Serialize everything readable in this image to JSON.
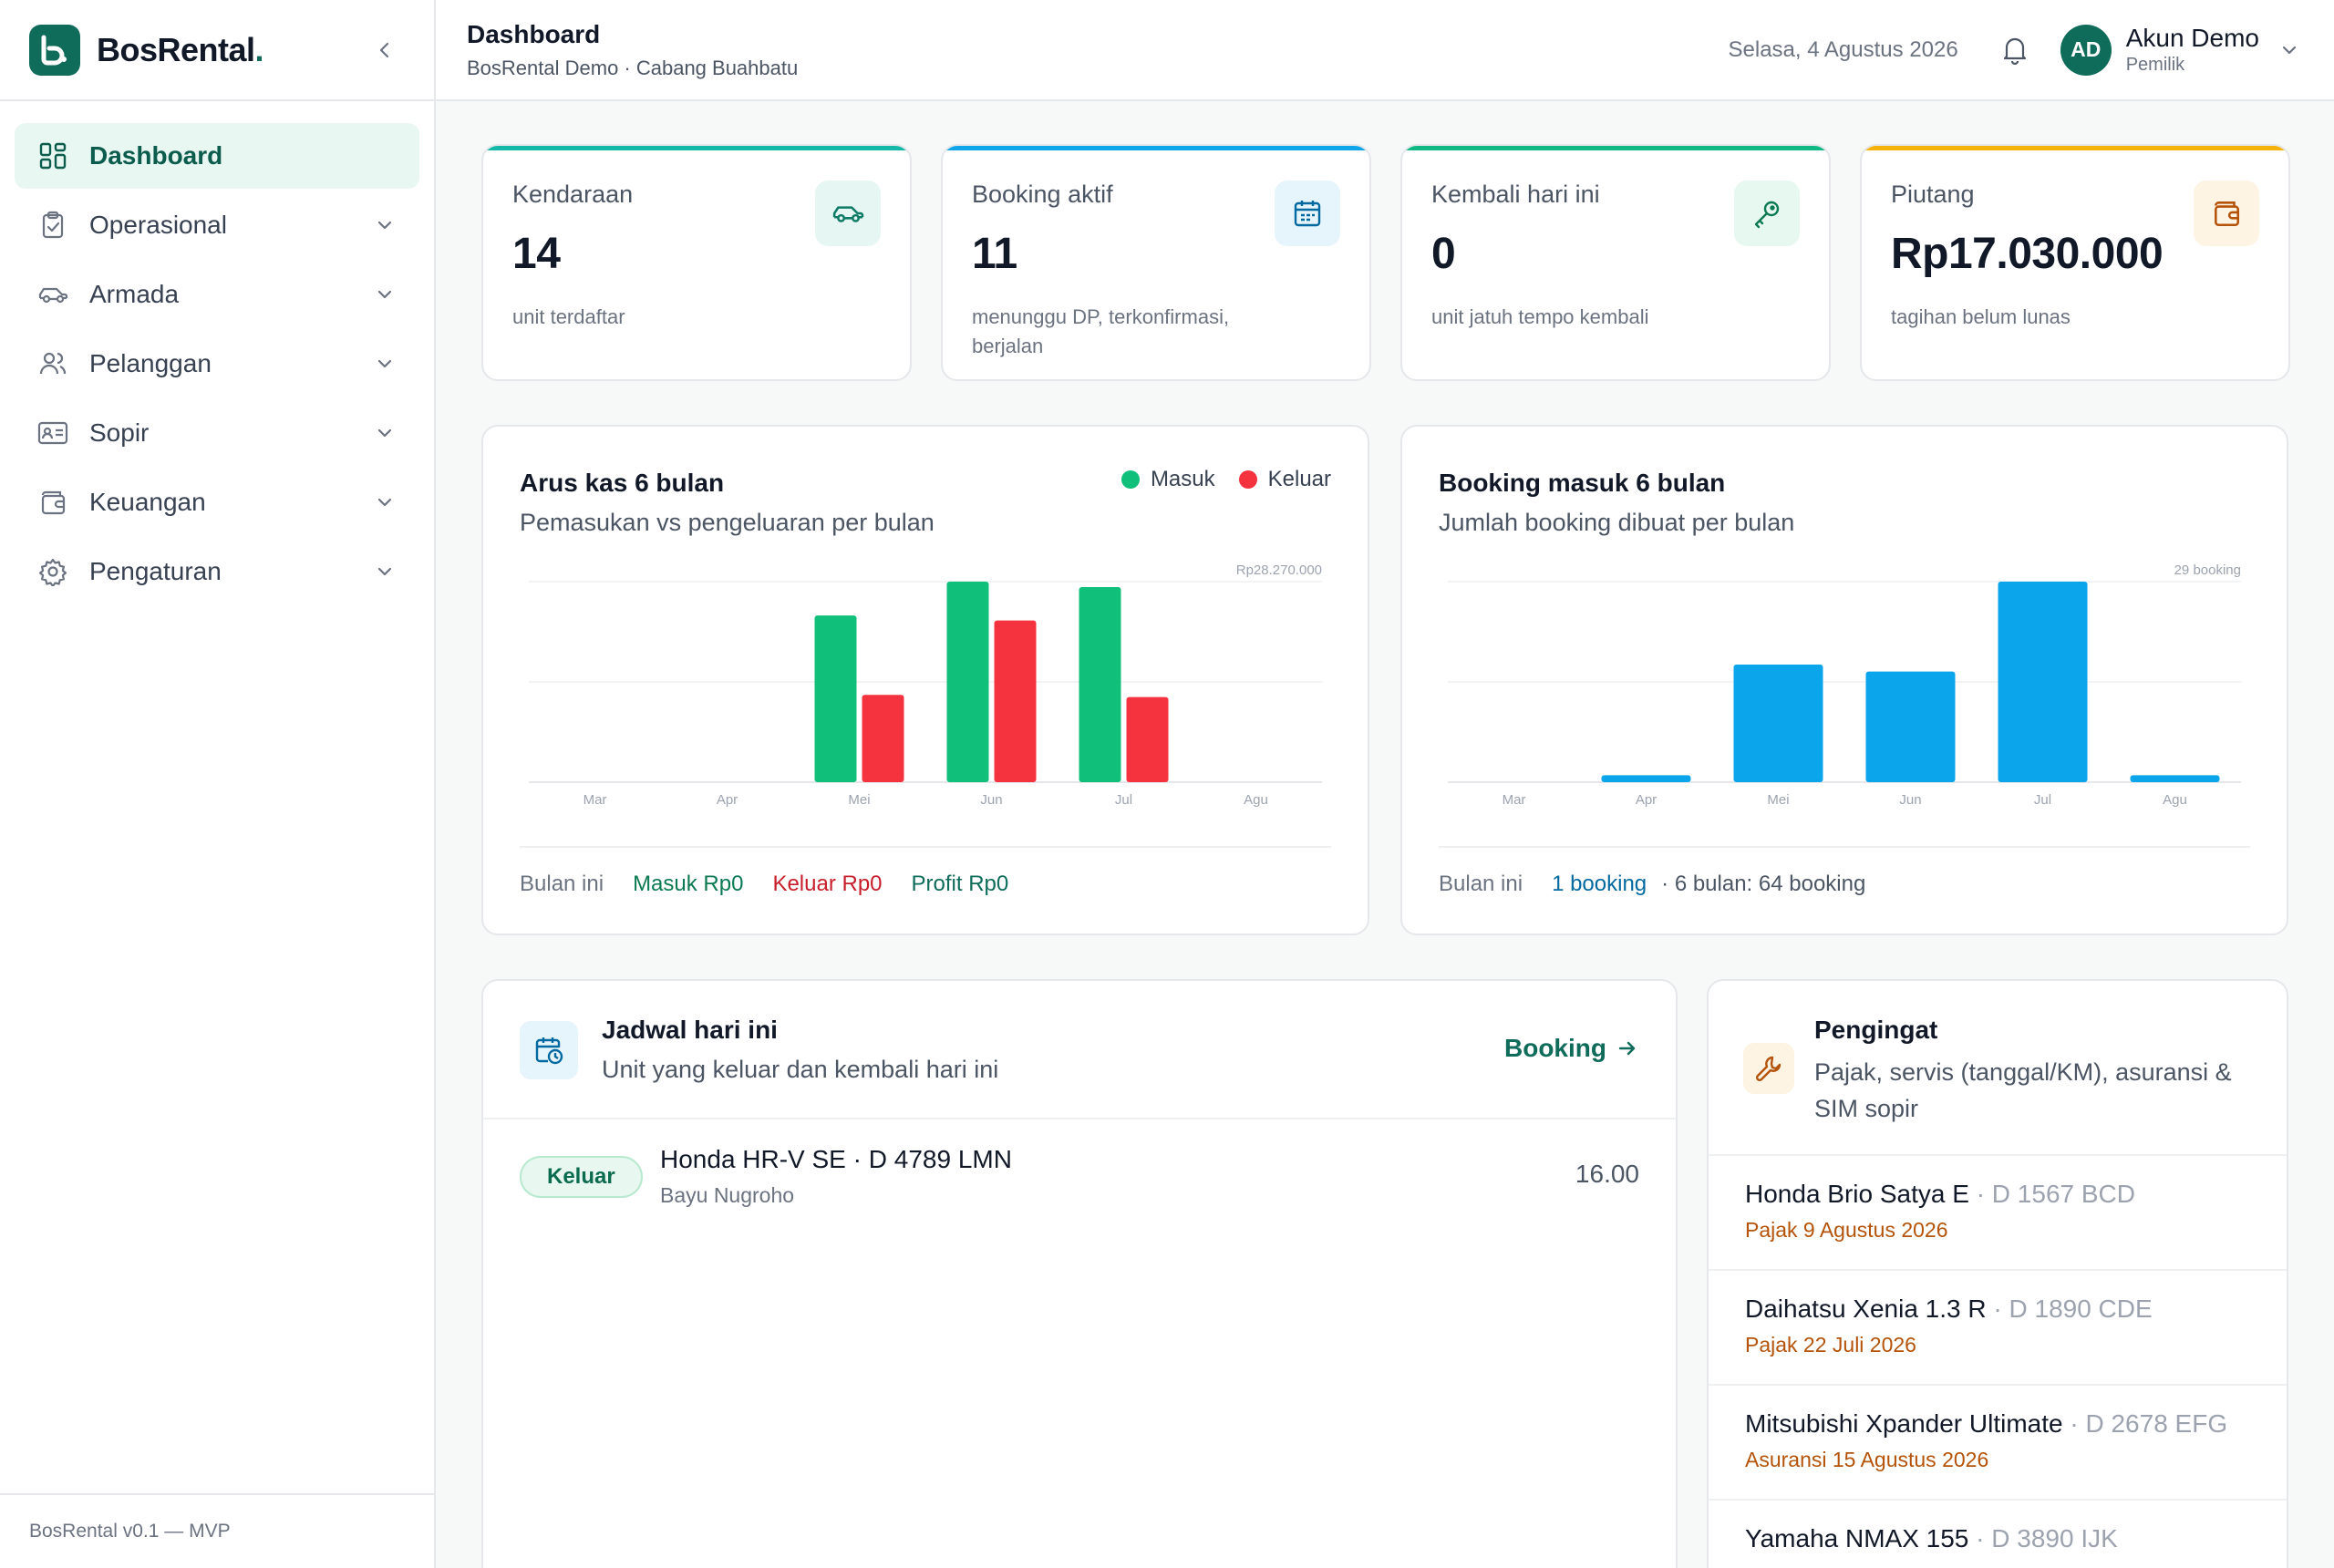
{
  "brand": {
    "name": "BosRental",
    "dot": "."
  },
  "sidebar": {
    "items": [
      {
        "label": "Dashboard",
        "active": true,
        "icon": "dashboard-grid-icon"
      },
      {
        "label": "Operasional",
        "icon": "clipboard-check-icon"
      },
      {
        "label": "Armada",
        "icon": "car-icon"
      },
      {
        "label": "Pelanggan",
        "icon": "users-icon"
      },
      {
        "label": "Sopir",
        "icon": "id-card-icon"
      },
      {
        "label": "Keuangan",
        "icon": "wallet-icon"
      },
      {
        "label": "Pengaturan",
        "icon": "gear-icon"
      }
    ],
    "footer": "BosRental v0.1 — MVP"
  },
  "header": {
    "title": "Dashboard",
    "subtitle": "BosRental Demo · Cabang Buahbatu",
    "date": "Selasa, 4 Agustus 2026",
    "user_initials": "AD",
    "user_name": "Akun Demo",
    "user_role": "Pemilik"
  },
  "stats": [
    {
      "label": "Kendaraan",
      "value": "14",
      "note": "unit terdaftar",
      "accent": "#14b8a6",
      "icon": "car-icon"
    },
    {
      "label": "Booking aktif",
      "value": "11",
      "note": "menunggu DP, terkonfirmasi, berjalan",
      "accent": "#0ea5e9",
      "icon": "calendar-icon"
    },
    {
      "label": "Kembali hari ini",
      "value": "0",
      "note": "unit jatuh tempo kembali",
      "accent": "#10b981",
      "icon": "key-icon"
    },
    {
      "label": "Piutang",
      "value": "Rp17.030.000",
      "note": "tagihan belum lunas",
      "accent": "#f5b20a",
      "icon": "wallet-icon"
    }
  ],
  "cashflow": {
    "title": "Arus kas 6 bulan",
    "subtitle": "Pemasukan vs pengeluaran per bulan",
    "legend_in": "Masuk",
    "legend_out": "Keluar",
    "max_label": "Rp28.270.000",
    "footer_label": "Bulan ini",
    "footer_in": "Masuk Rp0",
    "footer_out": "Keluar Rp0",
    "footer_profit": "Profit Rp0"
  },
  "bookings_chart": {
    "title": "Booking masuk 6 bulan",
    "subtitle": "Jumlah booking dibuat per bulan",
    "max_label": "29 booking",
    "footer_label": "Bulan ini",
    "footer_count": "1 booking",
    "footer_total": "· 6 bulan: 64 booking"
  },
  "chart_data": [
    {
      "type": "bar",
      "title": "Arus kas 6 bulan",
      "categories": [
        "Mar",
        "Apr",
        "Mei",
        "Jun",
        "Jul",
        "Agu"
      ],
      "ylim": [
        0,
        28270000
      ],
      "series": [
        {
          "name": "Masuk",
          "color": "#10c07a",
          "values": [
            0,
            0,
            23500000,
            28270000,
            27500000,
            0
          ]
        },
        {
          "name": "Keluar",
          "color": "#f4333f",
          "values": [
            0,
            0,
            12300000,
            22800000,
            12000000,
            0
          ]
        }
      ]
    },
    {
      "type": "bar",
      "title": "Booking masuk 6 bulan",
      "categories": [
        "Mar",
        "Apr",
        "Mei",
        "Jun",
        "Jul",
        "Agu"
      ],
      "ylim": [
        0,
        29
      ],
      "series": [
        {
          "color": "#0ba5ec",
          "values": [
            0,
            1,
            17,
            16,
            29,
            1
          ]
        }
      ]
    }
  ],
  "schedule": {
    "title": "Jadwal hari ini",
    "subtitle": "Unit yang keluar dan kembali hari ini",
    "link": "Booking",
    "rows": [
      {
        "status": "Keluar",
        "vehicle": "Honda HR-V SE · D 4789 LMN",
        "customer": "Bayu Nugroho",
        "time": "16.00"
      }
    ]
  },
  "reminders": {
    "title": "Pengingat",
    "subtitle": "Pajak, servis (tanggal/KM), asuransi & SIM sopir",
    "items": [
      {
        "name": "Honda Brio Satya E",
        "plate": " · D 1567 BCD",
        "due": "Pajak 9 Agustus 2026"
      },
      {
        "name": "Daihatsu Xenia 1.3 R",
        "plate": " · D 1890 CDE",
        "due": "Pajak 22 Juli 2026"
      },
      {
        "name": "Mitsubishi Xpander Ultimate",
        "plate": " · D 2678 EFG",
        "due": "Asuransi 15 Agustus 2026"
      },
      {
        "name": "Yamaha NMAX 155",
        "plate": " · D 3890 IJK",
        "due": ""
      }
    ]
  }
}
